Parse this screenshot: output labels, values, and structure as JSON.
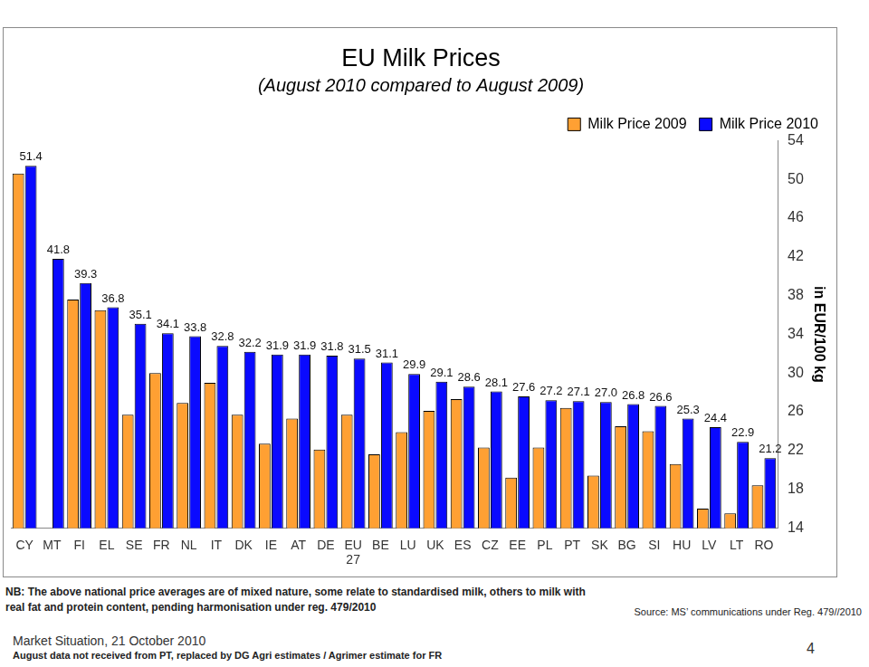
{
  "chart_data": {
    "type": "bar",
    "title": "EU Milk Prices",
    "subtitle": "(August 2010 compared to August 2009)",
    "y_label": "in EUR/100 kg",
    "categories": [
      "CY",
      "MT",
      "FI",
      "EL",
      "SE",
      "FR",
      "NL",
      "IT",
      "DK",
      "IE",
      "AT",
      "DE",
      "EU 27",
      "BE",
      "LU",
      "UK",
      "ES",
      "CZ",
      "EE",
      "PL",
      "PT",
      "SK",
      "BG",
      "SI",
      "HU",
      "LV",
      "LT",
      "RO"
    ],
    "series": [
      {
        "name": "Milk Price 2009",
        "color": "#ffa033",
        "values": [
          50.6,
          null,
          37.6,
          36.5,
          25.7,
          30.0,
          26.9,
          29.0,
          25.7,
          22.7,
          25.3,
          22.1,
          25.7,
          21.6,
          23.9,
          26.1,
          27.3,
          22.3,
          19.2,
          22.3,
          26.4,
          19.4,
          24.5,
          24.0,
          20.6,
          16.0,
          15.5,
          18.4
        ]
      },
      {
        "name": "Milk Price 2010",
        "color": "#0a0aff",
        "data_labels": true,
        "values": [
          51.4,
          41.8,
          39.3,
          36.8,
          35.1,
          34.1,
          33.8,
          32.8,
          32.2,
          31.9,
          31.9,
          31.8,
          31.5,
          31.1,
          29.9,
          29.1,
          28.6,
          28.1,
          27.6,
          27.2,
          27.1,
          27.0,
          26.8,
          26.6,
          25.3,
          24.4,
          22.9,
          21.2
        ],
        "value_labels": [
          "51.4",
          "41.8",
          "39.3",
          "36.8",
          "35.1",
          "34.1",
          "33.8",
          "32.8",
          "32.2",
          "31.9",
          "31.9",
          "31.8",
          "31.5",
          "31.1",
          "29.9",
          "29.1",
          "28.6",
          "28.1",
          "27.6",
          "27.2",
          "27.1",
          "27.0",
          "26.8",
          "26.6",
          "25.3",
          "24.4",
          "22.9",
          "21.2"
        ]
      }
    ],
    "ylim": [
      14,
      54
    ],
    "yticks": [
      14,
      18,
      22,
      26,
      30,
      34,
      38,
      42,
      46,
      50,
      54
    ],
    "grid": false,
    "legend": "upper right"
  },
  "notes": {
    "nb": "NB: The above national price averages are of mixed nature, some relate to standardised milk, others to milk with real fat and protein content, pending harmonisation under reg. 479/2010",
    "source": "Source: MS’ communications under Reg. 479//2010",
    "footer": "Market Situation, 21 October 2010",
    "footnote": "August data not received from PT, replaced by DG Agri estimates / Agrimer estimate for FR",
    "page": 4
  }
}
